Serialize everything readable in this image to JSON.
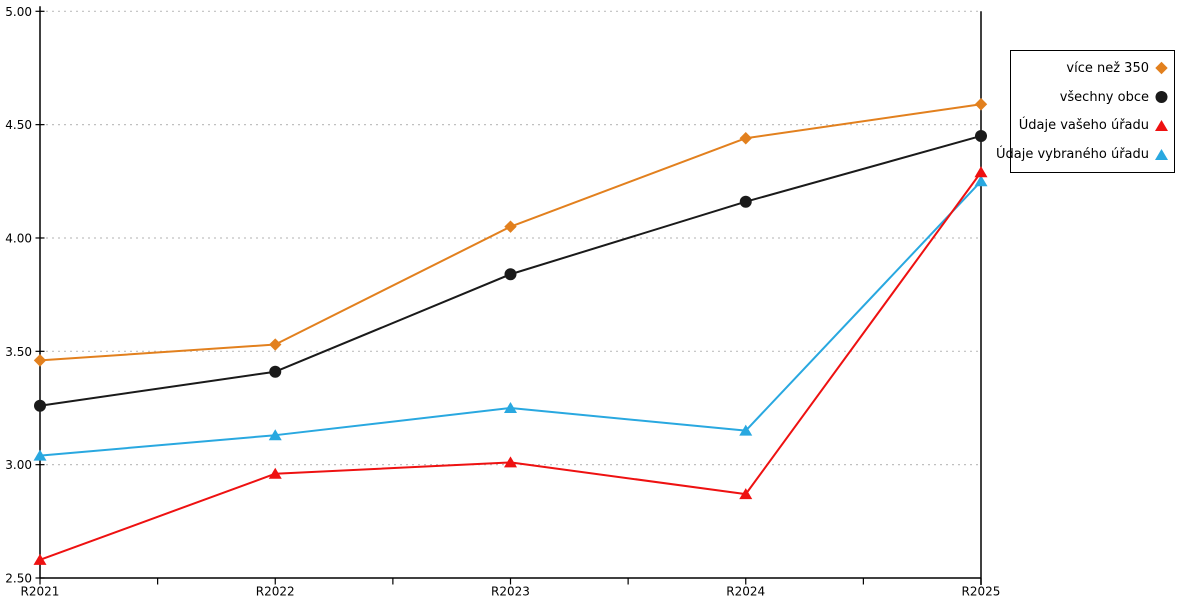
{
  "chart_data": {
    "type": "line",
    "title": "",
    "xlabel": "",
    "ylabel": "",
    "x_categories": [
      "R2021",
      "R2022",
      "R2023",
      "R2024",
      "R2025"
    ],
    "y_tick_labels": [
      "2.50",
      "3.00",
      "3.50",
      "4.00",
      "4.50",
      "5.00"
    ],
    "ylim": [
      2.5,
      5.0
    ],
    "grid": "horizontal-dotted",
    "legend_position": "outside-right-top-boxed",
    "series": [
      {
        "name": "více než 350",
        "marker": "diamond",
        "color": "#E2801E",
        "values": [
          3.46,
          3.53,
          4.05,
          4.44,
          4.59
        ]
      },
      {
        "name": "všechny obce",
        "marker": "circle",
        "color": "#1A1A1A",
        "values": [
          3.26,
          3.41,
          3.84,
          4.16,
          4.45
        ]
      },
      {
        "name": "Údaje vašeho úřadu",
        "marker": "triangle",
        "color": "#EE1111",
        "values": [
          2.58,
          2.96,
          3.01,
          2.87,
          4.29
        ]
      },
      {
        "name": "Údaje vybraného úřadu",
        "marker": "triangle",
        "color": "#29A8E0",
        "values": [
          3.04,
          3.13,
          3.25,
          3.15,
          4.25
        ]
      }
    ]
  },
  "colors": {
    "background": "#FFFFFF",
    "axis": "#000000",
    "gridline": "#C0C0C0",
    "text": "#000000"
  }
}
